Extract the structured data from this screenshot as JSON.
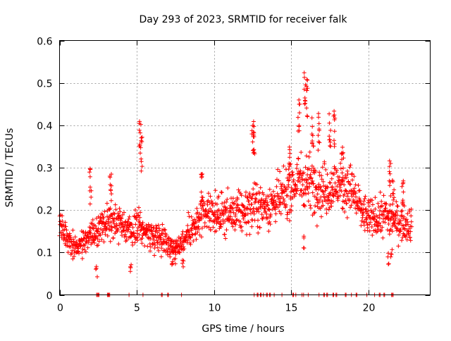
{
  "chart_data": {
    "type": "scatter",
    "title": "Day 293 of 2023, SRMTID for receiver falk",
    "xlabel": "GPS time / hours",
    "ylabel": "SRMTID / TECUs",
    "xlim": [
      0,
      24
    ],
    "ylim": [
      0,
      0.6
    ],
    "x_ticks": [
      "0",
      "5",
      "10",
      "15",
      "20"
    ],
    "y_ticks": [
      "0",
      "0.1",
      "0.2",
      "0.3",
      "0.4",
      "0.5",
      "0.6"
    ],
    "grid": true,
    "marker": "plus",
    "series_color": "#ff0000",
    "series": [
      {
        "name": "SRMTID",
        "trend": [
          [
            0.0,
            0.17
          ],
          [
            0.5,
            0.13
          ],
          [
            1.0,
            0.12
          ],
          [
            1.5,
            0.12
          ],
          [
            2.0,
            0.14
          ],
          [
            2.5,
            0.15
          ],
          [
            3.0,
            0.17
          ],
          [
            3.5,
            0.18
          ],
          [
            4.0,
            0.17
          ],
          [
            4.5,
            0.15
          ],
          [
            5.0,
            0.16
          ],
          [
            5.5,
            0.15
          ],
          [
            6.0,
            0.14
          ],
          [
            6.5,
            0.14
          ],
          [
            7.0,
            0.12
          ],
          [
            7.5,
            0.11
          ],
          [
            8.0,
            0.13
          ],
          [
            8.5,
            0.15
          ],
          [
            9.0,
            0.17
          ],
          [
            9.5,
            0.19
          ],
          [
            10.0,
            0.19
          ],
          [
            10.5,
            0.19
          ],
          [
            11.0,
            0.19
          ],
          [
            11.5,
            0.19
          ],
          [
            12.0,
            0.2
          ],
          [
            12.5,
            0.21
          ],
          [
            13.0,
            0.21
          ],
          [
            13.5,
            0.21
          ],
          [
            14.0,
            0.22
          ],
          [
            14.5,
            0.23
          ],
          [
            15.0,
            0.25
          ],
          [
            15.5,
            0.27
          ],
          [
            16.0,
            0.27
          ],
          [
            16.5,
            0.26
          ],
          [
            17.0,
            0.25
          ],
          [
            17.5,
            0.25
          ],
          [
            18.0,
            0.26
          ],
          [
            18.5,
            0.26
          ],
          [
            19.0,
            0.24
          ],
          [
            19.5,
            0.2
          ],
          [
            20.0,
            0.18
          ],
          [
            20.5,
            0.18
          ],
          [
            21.0,
            0.19
          ],
          [
            21.5,
            0.18
          ],
          [
            22.0,
            0.17
          ],
          [
            22.5,
            0.17
          ],
          [
            22.8,
            0.17
          ]
        ],
        "spikes": [
          [
            2.0,
            0.3
          ],
          [
            3.3,
            0.31
          ],
          [
            5.2,
            0.42
          ],
          [
            5.3,
            0.38
          ],
          [
            9.2,
            0.3
          ],
          [
            12.5,
            0.42
          ],
          [
            12.6,
            0.41
          ],
          [
            14.9,
            0.35
          ],
          [
            15.5,
            0.47
          ],
          [
            15.9,
            0.53
          ],
          [
            16.0,
            0.51
          ],
          [
            16.4,
            0.44
          ],
          [
            16.8,
            0.43
          ],
          [
            17.5,
            0.43
          ],
          [
            17.8,
            0.44
          ],
          [
            18.3,
            0.35
          ],
          [
            21.4,
            0.32
          ],
          [
            21.6,
            0.3
          ],
          [
            22.2,
            0.27
          ]
        ],
        "dips": [
          [
            2.4,
            0.04
          ],
          [
            4.6,
            0.05
          ],
          [
            7.3,
            0.05
          ],
          [
            7.5,
            0.07
          ],
          [
            8.0,
            0.06
          ],
          [
            15.8,
            0.11
          ],
          [
            21.3,
            0.07
          ],
          [
            21.5,
            0.08
          ]
        ],
        "zero_points_x": [
          2.4,
          2.5,
          3.1,
          3.2,
          4.5,
          5.4,
          6.6,
          7.0,
          7.9,
          12.6,
          12.8,
          13.0,
          13.2,
          13.4,
          13.6,
          13.9,
          14.4,
          15.1,
          15.3,
          15.7,
          15.8,
          16.1,
          16.8,
          17.1,
          17.3,
          17.7,
          17.9,
          18.5,
          18.9,
          19.2,
          19.9,
          20.4,
          20.7,
          21.0,
          21.5,
          21.6
        ]
      }
    ]
  }
}
